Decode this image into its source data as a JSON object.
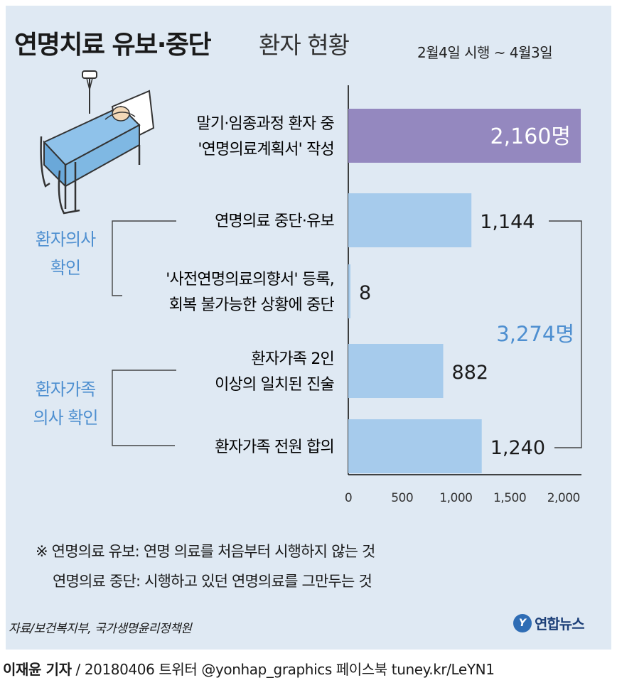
{
  "header": {
    "title_main": "연명치료 유보·중단",
    "title_sub": "환자 현황",
    "period": "2월4일 시행 ~ 4월3일"
  },
  "chart_data": {
    "type": "bar",
    "orientation": "horizontal",
    "categories": [
      [
        "말기·임종과정 환자 중",
        "'연명의료계획서' 작성"
      ],
      [
        "연명의료 중단·유보"
      ],
      [
        "'사전연명의료의향서' 등록,",
        "회복 불가능한 상황에 중단"
      ],
      [
        "환자가족 2인",
        "이상의 일치된 진술"
      ],
      [
        "환자가족 전원 합의"
      ]
    ],
    "values": [
      2160,
      1144,
      8,
      882,
      1240
    ],
    "value_labels": [
      "2,160명",
      "1,144",
      "8",
      "882",
      "1,240"
    ],
    "bar_colors": [
      "#9488bf",
      "#a6cbec",
      "#a6cbec",
      "#a6cbec",
      "#a6cbec"
    ],
    "xlim": [
      0,
      2160
    ],
    "xticks": [
      0,
      500,
      1000,
      1500,
      2000
    ],
    "xtick_labels": [
      "0",
      "500",
      "1,000",
      "1,500",
      "2,000"
    ],
    "groups": [
      {
        "label": [
          "환자의사",
          "확인"
        ],
        "rows": [
          1,
          2
        ]
      },
      {
        "label": [
          "환자가족",
          "의사 확인"
        ],
        "rows": [
          3,
          4
        ]
      }
    ],
    "total_label": "3,274명",
    "colors": {
      "accent_blue": "#4e8fd0",
      "bar_blue": "#a6cbec",
      "bar_purple": "#9488bf"
    }
  },
  "notes": [
    "※ 연명의료 유보: 연명 의료를 처음부터 시행하지 않는 것",
    "연명의료 중단: 시행하고 있던 연명의료를 그만두는 것"
  ],
  "source": "자료/보건복지부, 국가생명윤리정책원",
  "logo": {
    "mark": "Y",
    "text": "연합뉴스"
  },
  "credit": {
    "name": "이재윤 기자",
    "rest": " / 20180406   트위터 @yonhap_graphics   페이스북 tuney.kr/LeYN1"
  },
  "icons": [
    "hospital-bed-icon"
  ]
}
